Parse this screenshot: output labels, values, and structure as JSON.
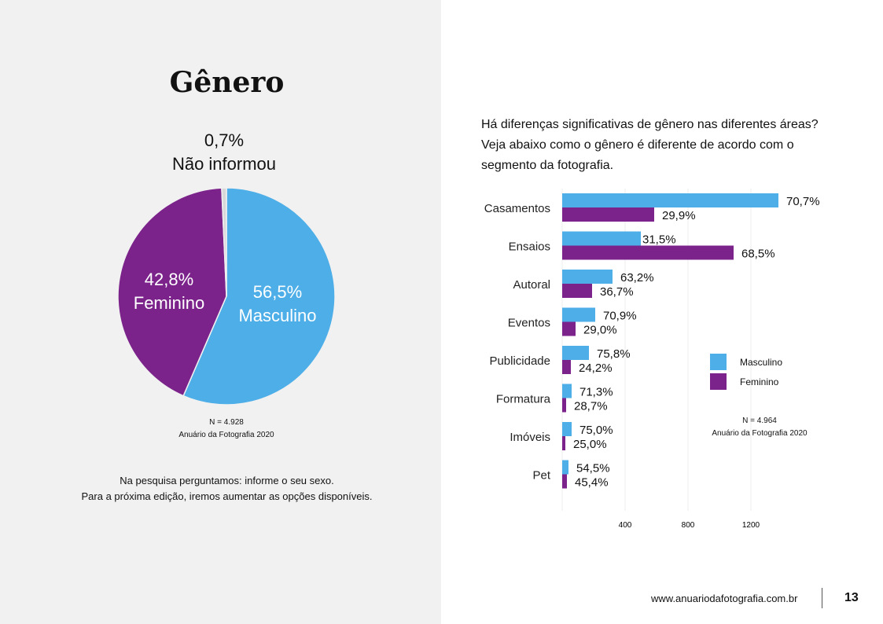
{
  "title": "Gênero",
  "chart_data": [
    {
      "type": "pie",
      "slices": [
        {
          "label": "Masculino",
          "value": 56.5,
          "text": "56,5%",
          "color": "#4daee8"
        },
        {
          "label": "Feminino",
          "value": 42.8,
          "text": "42,8%",
          "color": "#7b238b"
        },
        {
          "label": "Não informou",
          "value": 0.7,
          "text": "0,7%",
          "color": "#d8d8d8"
        }
      ],
      "note_n": "N = 4.928",
      "note_source": "Anuário da Fotografia 2020"
    },
    {
      "type": "bar",
      "orientation": "horizontal",
      "categories": [
        "Casamentos",
        "Ensaios",
        "Autoral",
        "Eventos",
        "Publicidade",
        "Formatura",
        "Imóveis",
        "Pet"
      ],
      "series": [
        {
          "name": "Masculino",
          "color": "#4daee8",
          "values": [
            1375,
            500,
            320,
            210,
            170,
            60,
            60,
            40
          ],
          "labels": [
            "70,7%",
            "31,5%",
            "63,2%",
            "70,9%",
            "75,8%",
            "71,3%",
            "75,0%",
            "54,5%"
          ]
        },
        {
          "name": "Feminino",
          "color": "#7b238b",
          "values": [
            585,
            1090,
            190,
            85,
            55,
            25,
            20,
            30
          ],
          "labels": [
            "29,9%",
            "68,5%",
            "36,7%",
            "29,0%",
            "24,2%",
            "28,7%",
            "25,0%",
            "45,4%"
          ]
        }
      ],
      "xticks": [
        400,
        800,
        1200
      ],
      "xlim": [
        0,
        1600
      ],
      "grid": true,
      "legend": "right",
      "note_n": "N = 4.964",
      "note_source": "Anuário da Fotografia 2020"
    }
  ],
  "note": [
    "Na pesquisa perguntamos: informe o seu sexo.",
    "Para a próxima edição, iremos aumentar as opções disponíveis."
  ],
  "intro": "Há diferenças significativas de gênero nas diferentes áreas? Veja abaixo como o gênero é diferente de acordo com o segmento da fotografia.",
  "footer": {
    "url": "www.anuariodafotografia.com.br",
    "page": "13"
  }
}
